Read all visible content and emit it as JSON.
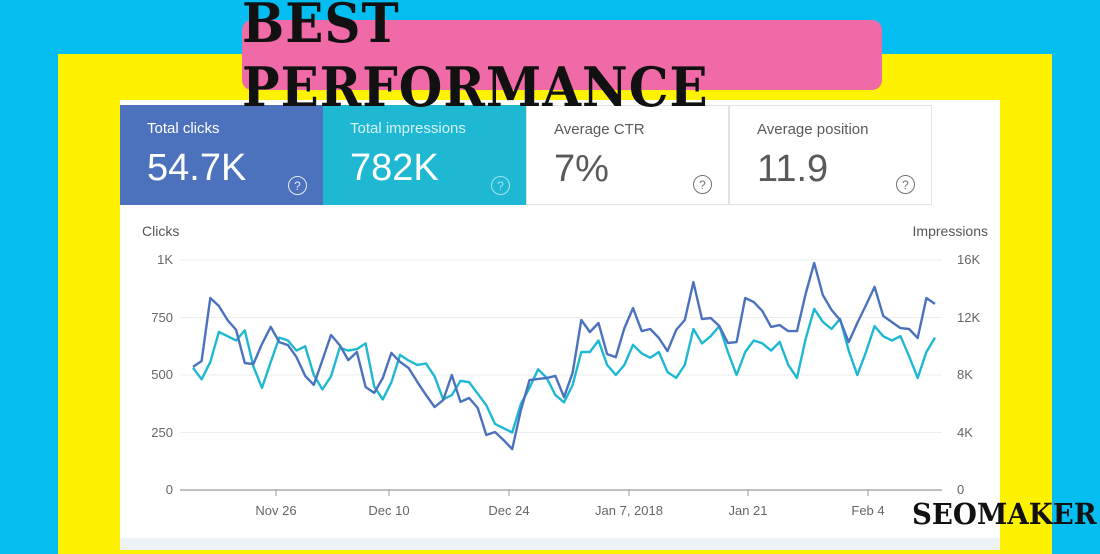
{
  "banner": {
    "title": "BEST PERFORMANCE"
  },
  "watermark": "SEOMAKER",
  "colors": {
    "background": "#04bdf1",
    "frame": "#fff200",
    "banner": "#f06aa8",
    "clicks": "#4c72bd",
    "impressions": "#1fb8d2"
  },
  "metrics": [
    {
      "label": "Total clicks",
      "value": "54.7K",
      "help_icon": "question-circle-icon",
      "selected": true
    },
    {
      "label": "Total impressions",
      "value": "782K",
      "help_icon": "question-circle-icon",
      "selected": true
    },
    {
      "label": "Average CTR",
      "value": "7%",
      "help_icon": "question-circle-icon",
      "selected": false
    },
    {
      "label": "Average position",
      "value": "11.9",
      "help_icon": "question-circle-icon",
      "selected": false
    }
  ],
  "chart_data": {
    "type": "line",
    "title": "",
    "xlabel": "",
    "ylabel": "Clicks",
    "ylabel_right": "Impressions",
    "ylim": [
      0,
      1000
    ],
    "ylim_right": [
      0,
      16000
    ],
    "yticks_left": [
      "0",
      "250",
      "500",
      "750",
      "1K"
    ],
    "yticks_right": [
      "0",
      "4K",
      "8K",
      "12K",
      "16K"
    ],
    "xticks": [
      "Nov 26",
      "Dec 10",
      "Dec 24",
      "Jan 7, 2018",
      "Jan 21",
      "Feb 4"
    ],
    "grid": true,
    "legend": "none",
    "x_range": [
      "Nov 18, 2017",
      "Feb 9, 2018"
    ],
    "series": [
      {
        "name": "Clicks",
        "axis": "left",
        "values": [
          535,
          561,
          835,
          800,
          739,
          696,
          552,
          548,
          635,
          709,
          643,
          630,
          578,
          496,
          457,
          565,
          674,
          630,
          565,
          600,
          448,
          422,
          487,
          596,
          557,
          530,
          470,
          413,
          361,
          391,
          500,
          383,
          400,
          357,
          239,
          252,
          217,
          178,
          348,
          478,
          483,
          487,
          496,
          404,
          509,
          739,
          687,
          726,
          591,
          578,
          704,
          791,
          691,
          700,
          661,
          604,
          696,
          739,
          904,
          743,
          748,
          713,
          639,
          643,
          835,
          817,
          778,
          709,
          717,
          691,
          691,
          852,
          987,
          848,
          783,
          739,
          643,
          726,
          804,
          883,
          757,
          730,
          704,
          700,
          661,
          835,
          809
        ]
      },
      {
        "name": "Impressions",
        "axis": "right",
        "values": [
          8500,
          7700,
          8900,
          11000,
          10700,
          10400,
          11100,
          8600,
          7100,
          8900,
          10600,
          10400,
          9700,
          10000,
          8000,
          7000,
          7900,
          9900,
          9700,
          9800,
          10200,
          7200,
          6300,
          7500,
          9400,
          9000,
          8700,
          8800,
          7900,
          6300,
          6600,
          7600,
          7500,
          6700,
          5900,
          4600,
          4300,
          4000,
          6000,
          7100,
          8400,
          7800,
          6600,
          6100,
          7300,
          9600,
          9600,
          10400,
          8700,
          8000,
          8700,
          10100,
          9500,
          9200,
          9600,
          8200,
          7800,
          8700,
          11200,
          10200,
          10700,
          11400,
          9600,
          8000,
          9600,
          10400,
          10200,
          9700,
          10300,
          8700,
          7800,
          10500,
          12600,
          11700,
          11200,
          11900,
          9700,
          8000,
          9600,
          11400,
          10700,
          10400,
          10700,
          9300,
          7800,
          9600,
          10600
        ]
      }
    ]
  }
}
